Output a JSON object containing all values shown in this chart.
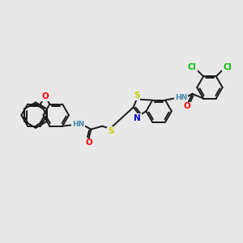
{
  "bg_color": "#e8e8e8",
  "bond_color": "#1a1a1a",
  "atom_colors": {
    "O": "#ff0000",
    "N": "#0000cc",
    "S": "#cccc00",
    "Cl": "#00bb00",
    "NH": "#4488aa"
  },
  "figsize": [
    3.0,
    3.0
  ],
  "dpi": 100,
  "lw": 1.4,
  "r6": 16,
  "r5": 13
}
